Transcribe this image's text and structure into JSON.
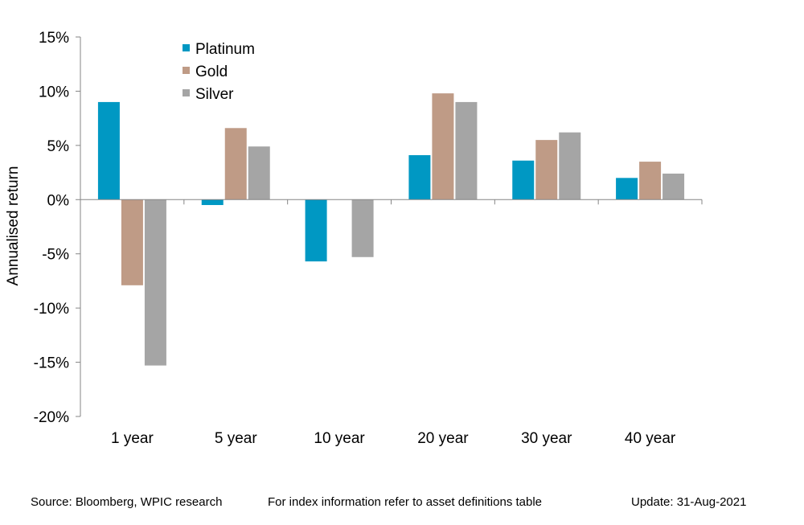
{
  "chart_data": {
    "type": "bar",
    "title": "",
    "xlabel": "",
    "ylabel": "Annualised return",
    "ylim": [
      -20,
      15
    ],
    "yticks": [
      15,
      10,
      5,
      0,
      -5,
      -10,
      -15,
      -20
    ],
    "ytick_labels": [
      "15%",
      "10%",
      "5%",
      "0%",
      "-5%",
      "-10%",
      "-15%",
      "-20%"
    ],
    "categories": [
      "1 year",
      "5 year",
      "10 year",
      "20 year",
      "30 year",
      "40 year"
    ],
    "series": [
      {
        "name": "Platinum",
        "color": "#0098C3",
        "values": [
          9.0,
          -0.5,
          -5.7,
          4.1,
          3.6,
          2.0
        ]
      },
      {
        "name": "Gold",
        "color": "#BF9B86",
        "values": [
          -7.9,
          6.6,
          null,
          9.8,
          5.5,
          3.5
        ]
      },
      {
        "name": "Silver",
        "color": "#A5A5A5",
        "values": [
          -15.3,
          4.9,
          -5.3,
          9.0,
          6.2,
          2.4
        ]
      }
    ],
    "legend": "top-left",
    "grid": false
  },
  "footer": {
    "source": "Source: Bloomberg, WPIC research",
    "index_note": "For index information refer to asset definitions table",
    "update": "Update: 31-Aug-2021"
  }
}
